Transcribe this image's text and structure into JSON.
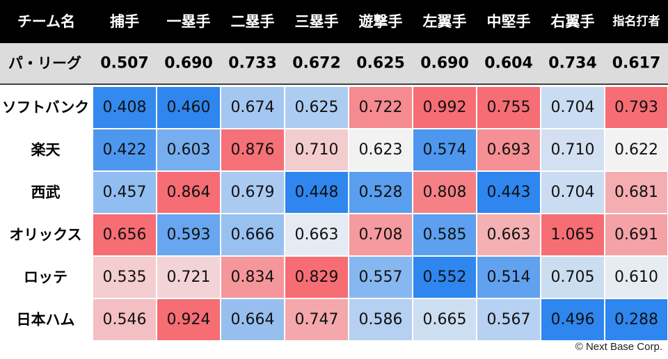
{
  "chart_data": {
    "type": "heatmap",
    "corner_label": "チーム名",
    "columns": [
      "捕手",
      "一塁手",
      "二塁手",
      "三塁手",
      "遊撃手",
      "左翼手",
      "中堅手",
      "右翼手",
      "指名打者"
    ],
    "league": {
      "label": "パ・リーグ",
      "values": [
        "0.507",
        "0.690",
        "0.733",
        "0.672",
        "0.625",
        "0.690",
        "0.604",
        "0.734",
        "0.617"
      ]
    },
    "rows": [
      {
        "team": "ソフトバンク",
        "values": [
          "0.408",
          "0.460",
          "0.674",
          "0.625",
          "0.722",
          "0.992",
          "0.755",
          "0.704",
          "0.793"
        ]
      },
      {
        "team": "楽天",
        "values": [
          "0.422",
          "0.603",
          "0.876",
          "0.710",
          "0.623",
          "0.574",
          "0.693",
          "0.710",
          "0.622"
        ]
      },
      {
        "team": "西武",
        "values": [
          "0.457",
          "0.864",
          "0.679",
          "0.448",
          "0.528",
          "0.808",
          "0.443",
          "0.704",
          "0.681"
        ]
      },
      {
        "team": "オリックス",
        "values": [
          "0.656",
          "0.593",
          "0.666",
          "0.663",
          "0.708",
          "0.585",
          "0.663",
          "1.065",
          "0.691"
        ]
      },
      {
        "team": "ロッテ",
        "values": [
          "0.535",
          "0.721",
          "0.834",
          "0.829",
          "0.557",
          "0.552",
          "0.514",
          "0.705",
          "0.610"
        ]
      },
      {
        "team": "日本ハム",
        "values": [
          "0.546",
          "0.924",
          "0.664",
          "0.747",
          "0.586",
          "0.665",
          "0.567",
          "0.496",
          "0.288"
        ]
      }
    ],
    "colors": {
      "header_bg": "#000000",
      "header_text": "#ffffff",
      "league_bg": "#dcdcdc",
      "neutral": "#f2f2f2",
      "low": "#2e86ee",
      "high": "#f66d74"
    }
  },
  "footer": {
    "copyright": "© Next Base Corp."
  }
}
